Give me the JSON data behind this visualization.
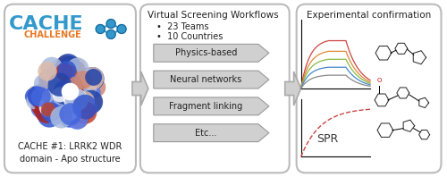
{
  "bg_color": "#ffffff",
  "panel_bg": "#ffffff",
  "panel_border": "#cccccc",
  "panel1": {
    "cache_text": "CACHE",
    "cache_color": "#3399cc",
    "challenge_text": "CHALLENGE",
    "challenge_color": "#e87722",
    "caption": "CACHE #1: LRRK2 WDR\ndomain - Apo structure",
    "caption_color": "#222222"
  },
  "panel2": {
    "title": "Virtual Screening Workflows",
    "bullets": [
      "23 Teams",
      "10 Countries"
    ],
    "arrows": [
      "Physics-based",
      "Neural networks",
      "Fragment linking",
      "Etc..."
    ],
    "title_color": "#222222",
    "arrow_bg": "#cccccc",
    "arrow_text_color": "#222222"
  },
  "panel3": {
    "title": "Experimental confirmation",
    "spr_label": "SPR",
    "title_color": "#222222"
  },
  "arrow_color": "#aaaaaa",
  "arrow_border": "#888888"
}
